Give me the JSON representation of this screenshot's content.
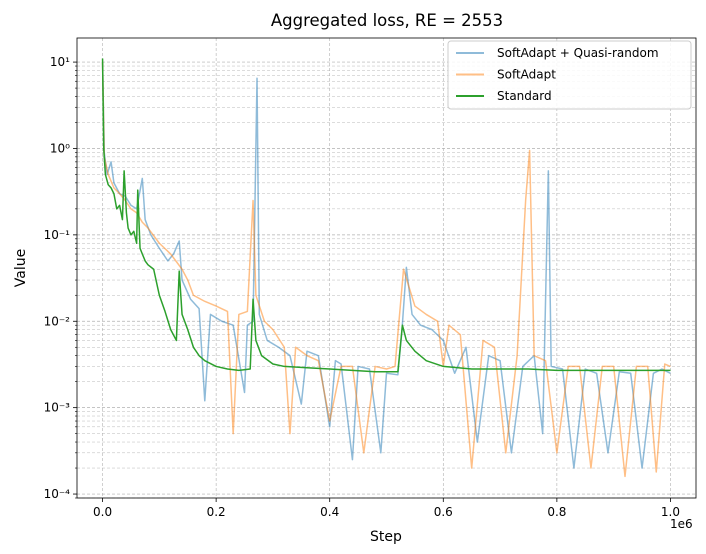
{
  "chart_data": {
    "type": "line",
    "title": "Aggregated loss, RE = 2553",
    "xlabel": "Step",
    "ylabel": "Value",
    "x_offset_label": "1e6",
    "xlim": [
      -45000,
      1045000
    ],
    "ylim": [
      9e-05,
      19
    ],
    "yscale": "log",
    "grid": true,
    "legend_position": "top-right",
    "x_ticks": [
      0,
      200000,
      400000,
      600000,
      800000,
      1000000
    ],
    "x_tick_labels": [
      "0.0",
      "0.2",
      "0.4",
      "0.6",
      "0.8",
      "1.0"
    ],
    "y_ticks": [
      0.0001,
      0.001,
      0.01,
      0.1,
      1,
      10
    ],
    "y_tick_labels": [
      "10⁻⁴",
      "10⁻³",
      "10⁻²",
      "10⁻¹",
      "10⁰",
      "10¹"
    ],
    "series": [
      {
        "name": "SoftAdapt + Quasi-random",
        "color": "#1f77b4",
        "opacity": 0.5,
        "points": [
          [
            0,
            10
          ],
          [
            3000,
            0.9
          ],
          [
            8000,
            0.5
          ],
          [
            15000,
            0.7
          ],
          [
            20000,
            0.4
          ],
          [
            30000,
            0.3
          ],
          [
            40000,
            0.28
          ],
          [
            50000,
            0.22
          ],
          [
            60000,
            0.2
          ],
          [
            70000,
            0.45
          ],
          [
            75000,
            0.15
          ],
          [
            85000,
            0.1
          ],
          [
            100000,
            0.07
          ],
          [
            115000,
            0.05
          ],
          [
            125000,
            0.06
          ],
          [
            135000,
            0.085
          ],
          [
            140000,
            0.03
          ],
          [
            155000,
            0.018
          ],
          [
            170000,
            0.014
          ],
          [
            180000,
            0.0012
          ],
          [
            190000,
            0.012
          ],
          [
            210000,
            0.01
          ],
          [
            230000,
            0.009
          ],
          [
            250000,
            0.0015
          ],
          [
            255000,
            0.009
          ],
          [
            265000,
            0.01
          ],
          [
            272000,
            6.5
          ],
          [
            276000,
            0.012
          ],
          [
            290000,
            0.006
          ],
          [
            310000,
            0.005
          ],
          [
            330000,
            0.004
          ],
          [
            350000,
            0.0011
          ],
          [
            360000,
            0.0045
          ],
          [
            380000,
            0.004
          ],
          [
            400000,
            0.0006
          ],
          [
            410000,
            0.0035
          ],
          [
            420000,
            0.0032
          ],
          [
            440000,
            0.00025
          ],
          [
            450000,
            0.003
          ],
          [
            470000,
            0.0028
          ],
          [
            490000,
            0.0003
          ],
          [
            500000,
            0.0025
          ],
          [
            520000,
            0.0024
          ],
          [
            527000,
            0.0075
          ],
          [
            535000,
            0.042
          ],
          [
            545000,
            0.012
          ],
          [
            560000,
            0.009
          ],
          [
            580000,
            0.008
          ],
          [
            600000,
            0.006
          ],
          [
            620000,
            0.0025
          ],
          [
            640000,
            0.005
          ],
          [
            660000,
            0.0004
          ],
          [
            680000,
            0.004
          ],
          [
            700000,
            0.0035
          ],
          [
            720000,
            0.0003
          ],
          [
            740000,
            0.003
          ],
          [
            760000,
            0.004
          ],
          [
            775000,
            0.0005
          ],
          [
            785000,
            0.55
          ],
          [
            790000,
            0.003
          ],
          [
            810000,
            0.0028
          ],
          [
            830000,
            0.0002
          ],
          [
            850000,
            0.0028
          ],
          [
            870000,
            0.0025
          ],
          [
            890000,
            0.0003
          ],
          [
            910000,
            0.0026
          ],
          [
            930000,
            0.0025
          ],
          [
            950000,
            0.0002
          ],
          [
            970000,
            0.0025
          ],
          [
            985000,
            0.0028
          ],
          [
            1000000,
            0.0025
          ]
        ]
      },
      {
        "name": "SoftAdapt",
        "color": "#ff7f0e",
        "opacity": 0.5,
        "points": [
          [
            0,
            10
          ],
          [
            3000,
            0.8
          ],
          [
            10000,
            0.5
          ],
          [
            20000,
            0.35
          ],
          [
            30000,
            0.3
          ],
          [
            40000,
            0.25
          ],
          [
            50000,
            0.2
          ],
          [
            60000,
            0.18
          ],
          [
            70000,
            0.14
          ],
          [
            80000,
            0.12
          ],
          [
            100000,
            0.08
          ],
          [
            120000,
            0.06
          ],
          [
            140000,
            0.04
          ],
          [
            150000,
            0.03
          ],
          [
            160000,
            0.02
          ],
          [
            180000,
            0.017
          ],
          [
            200000,
            0.015
          ],
          [
            220000,
            0.013
          ],
          [
            230000,
            0.0005
          ],
          [
            240000,
            0.012
          ],
          [
            255000,
            0.013
          ],
          [
            265000,
            0.25
          ],
          [
            270000,
            0.02
          ],
          [
            285000,
            0.01
          ],
          [
            300000,
            0.008
          ],
          [
            320000,
            0.005
          ],
          [
            330000,
            0.0005
          ],
          [
            340000,
            0.005
          ],
          [
            360000,
            0.004
          ],
          [
            380000,
            0.0035
          ],
          [
            400000,
            0.0007
          ],
          [
            420000,
            0.003
          ],
          [
            440000,
            0.003
          ],
          [
            460000,
            0.0003
          ],
          [
            480000,
            0.003
          ],
          [
            500000,
            0.0028
          ],
          [
            515000,
            0.003
          ],
          [
            530000,
            0.04
          ],
          [
            550000,
            0.015
          ],
          [
            570000,
            0.012
          ],
          [
            590000,
            0.01
          ],
          [
            600000,
            0.003
          ],
          [
            610000,
            0.009
          ],
          [
            630000,
            0.007
          ],
          [
            650000,
            0.0002
          ],
          [
            670000,
            0.006
          ],
          [
            690000,
            0.005
          ],
          [
            710000,
            0.0003
          ],
          [
            730000,
            0.004
          ],
          [
            745000,
            0.25
          ],
          [
            752000,
            0.95
          ],
          [
            760000,
            0.004
          ],
          [
            780000,
            0.0035
          ],
          [
            800000,
            0.0003
          ],
          [
            820000,
            0.003
          ],
          [
            840000,
            0.003
          ],
          [
            860000,
            0.0002
          ],
          [
            880000,
            0.003
          ],
          [
            900000,
            0.003
          ],
          [
            920000,
            0.00016
          ],
          [
            940000,
            0.003
          ],
          [
            960000,
            0.003
          ],
          [
            975000,
            0.00018
          ],
          [
            990000,
            0.0032
          ],
          [
            1000000,
            0.003
          ]
        ]
      },
      {
        "name": "Standard",
        "color": "#2ca02c",
        "opacity": 1,
        "points": [
          [
            0,
            11
          ],
          [
            2000,
            1.0
          ],
          [
            5000,
            0.5
          ],
          [
            10000,
            0.38
          ],
          [
            15000,
            0.35
          ],
          [
            20000,
            0.3
          ],
          [
            25000,
            0.2
          ],
          [
            30000,
            0.22
          ],
          [
            35000,
            0.15
          ],
          [
            38000,
            0.55
          ],
          [
            42000,
            0.18
          ],
          [
            45000,
            0.12
          ],
          [
            50000,
            0.1
          ],
          [
            55000,
            0.11
          ],
          [
            60000,
            0.08
          ],
          [
            62000,
            0.33
          ],
          [
            66000,
            0.07
          ],
          [
            70000,
            0.06
          ],
          [
            75000,
            0.05
          ],
          [
            80000,
            0.045
          ],
          [
            90000,
            0.04
          ],
          [
            100000,
            0.02
          ],
          [
            110000,
            0.013
          ],
          [
            120000,
            0.008
          ],
          [
            130000,
            0.006
          ],
          [
            135000,
            0.038
          ],
          [
            140000,
            0.012
          ],
          [
            150000,
            0.008
          ],
          [
            160000,
            0.005
          ],
          [
            170000,
            0.004
          ],
          [
            180000,
            0.0035
          ],
          [
            200000,
            0.003
          ],
          [
            220000,
            0.0028
          ],
          [
            240000,
            0.0027
          ],
          [
            260000,
            0.0028
          ],
          [
            265000,
            0.018
          ],
          [
            270000,
            0.006
          ],
          [
            280000,
            0.004
          ],
          [
            300000,
            0.0032
          ],
          [
            320000,
            0.003
          ],
          [
            360000,
            0.0029
          ],
          [
            400000,
            0.0028
          ],
          [
            440000,
            0.0027
          ],
          [
            480000,
            0.0026
          ],
          [
            520000,
            0.0026
          ],
          [
            528000,
            0.009
          ],
          [
            535000,
            0.006
          ],
          [
            550000,
            0.0045
          ],
          [
            570000,
            0.0035
          ],
          [
            600000,
            0.003
          ],
          [
            650000,
            0.0028
          ],
          [
            700000,
            0.0028
          ],
          [
            750000,
            0.0028
          ],
          [
            800000,
            0.0027
          ],
          [
            850000,
            0.0027
          ],
          [
            900000,
            0.0027
          ],
          [
            950000,
            0.0027
          ],
          [
            1000000,
            0.0027
          ]
        ]
      }
    ]
  }
}
